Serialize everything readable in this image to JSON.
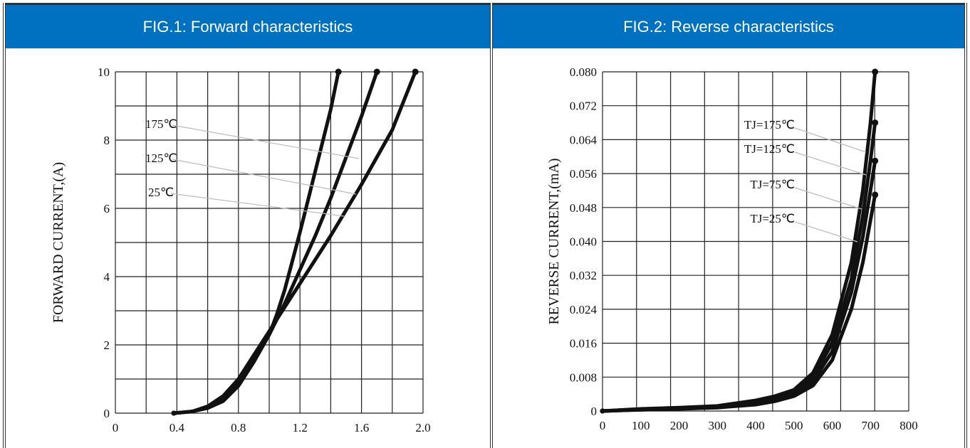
{
  "panels": [
    {
      "title": "FIG.1: Forward characteristics",
      "chart_data": {
        "type": "line",
        "title": "FIG.1: Forward characteristics",
        "xlabel": "",
        "ylabel": "FORWARD CURRENT,(A)",
        "xlim": [
          0,
          2.0
        ],
        "ylim": [
          0,
          10
        ],
        "x_ticks": [
          "0",
          "0.4",
          "0.8",
          "1.2",
          "1.6",
          "2.0"
        ],
        "y_ticks": [
          "0",
          "2",
          "4",
          "6",
          "8",
          "10"
        ],
        "grid": true,
        "series": [
          {
            "name": "175℃",
            "x": [
              0.38,
              0.5,
              0.6,
              0.7,
              0.8,
              0.9,
              1.0,
              1.05,
              1.1,
              1.2,
              1.3,
              1.4,
              1.45
            ],
            "y": [
              0,
              0.05,
              0.15,
              0.35,
              0.8,
              1.5,
              2.3,
              2.9,
              3.6,
              5.3,
              7.1,
              8.9,
              10
            ]
          },
          {
            "name": "125℃",
            "x": [
              0.38,
              0.5,
              0.6,
              0.7,
              0.8,
              0.9,
              1.0,
              1.1,
              1.2,
              1.3,
              1.4,
              1.5,
              1.6,
              1.7
            ],
            "y": [
              0,
              0.05,
              0.15,
              0.4,
              0.9,
              1.6,
              2.3,
              3.2,
              4.2,
              5.2,
              6.3,
              7.5,
              8.7,
              10
            ]
          },
          {
            "name": "25℃",
            "x": [
              0.38,
              0.5,
              0.6,
              0.7,
              0.8,
              0.9,
              1.0,
              1.1,
              1.2,
              1.3,
              1.4,
              1.5,
              1.6,
              1.7,
              1.8,
              1.95
            ],
            "y": [
              0,
              0.05,
              0.2,
              0.5,
              1.0,
              1.7,
              2.4,
              3.1,
              3.8,
              4.5,
              5.2,
              5.95,
              6.7,
              7.5,
              8.3,
              10
            ]
          }
        ],
        "series_labels": [
          "175℃",
          "125℃",
          "25℃"
        ]
      }
    },
    {
      "title": "FIG.2: Reverse characteristics",
      "chart_data": {
        "type": "line",
        "title": "FIG.2: Reverse characteristics",
        "xlabel": "",
        "ylabel": "REVERSE CURRENT,(mA)",
        "xlim": [
          0,
          800
        ],
        "ylim": [
          0,
          0.08
        ],
        "x_ticks": [
          "0",
          "100",
          "200",
          "300",
          "400",
          "500",
          "600",
          "700",
          "800"
        ],
        "y_ticks": [
          "0",
          "0.008",
          "0.016",
          "0.024",
          "0.032",
          "0.040",
          "0.048",
          "0.056",
          "0.064",
          "0.072",
          "0.080"
        ],
        "grid": true,
        "series": [
          {
            "name": "TJ=175℃",
            "x": [
              0,
              100,
              200,
              300,
              400,
              450,
              500,
              550,
              600,
              650,
              680,
              700,
              712
            ],
            "y": [
              0,
              0.0005,
              0.0008,
              0.0012,
              0.0025,
              0.0035,
              0.005,
              0.009,
              0.018,
              0.035,
              0.052,
              0.068,
              0.08
            ]
          },
          {
            "name": "TJ=125℃",
            "x": [
              0,
              100,
              200,
              300,
              400,
              450,
              500,
              550,
              600,
              650,
              680,
              700,
              712
            ],
            "y": [
              0,
              0.0004,
              0.0007,
              0.001,
              0.002,
              0.003,
              0.0045,
              0.008,
              0.016,
              0.031,
              0.046,
              0.059,
              0.068
            ]
          },
          {
            "name": "TJ=75℃",
            "x": [
              0,
              100,
              200,
              300,
              400,
              450,
              500,
              550,
              600,
              650,
              680,
              700,
              712
            ],
            "y": [
              0,
              0.0003,
              0.0006,
              0.0009,
              0.0018,
              0.0027,
              0.004,
              0.007,
              0.014,
              0.028,
              0.041,
              0.052,
              0.059
            ]
          },
          {
            "name": "TJ=25℃",
            "x": [
              0,
              100,
              200,
              300,
              400,
              450,
              500,
              550,
              600,
              650,
              680,
              700,
              712
            ],
            "y": [
              0,
              0.0003,
              0.0005,
              0.0008,
              0.0015,
              0.0023,
              0.0035,
              0.006,
              0.012,
              0.024,
              0.035,
              0.045,
              0.051
            ]
          }
        ],
        "series_labels": [
          "TJ=175℃",
          "TJ=125℃",
          "TJ=75℃",
          "TJ=25℃"
        ]
      }
    }
  ],
  "colors": {
    "header_bg": "#0070c0",
    "header_text": "#ffffff",
    "curve": "#111111",
    "grid": "#222222",
    "leader": "#bbbbbb"
  }
}
